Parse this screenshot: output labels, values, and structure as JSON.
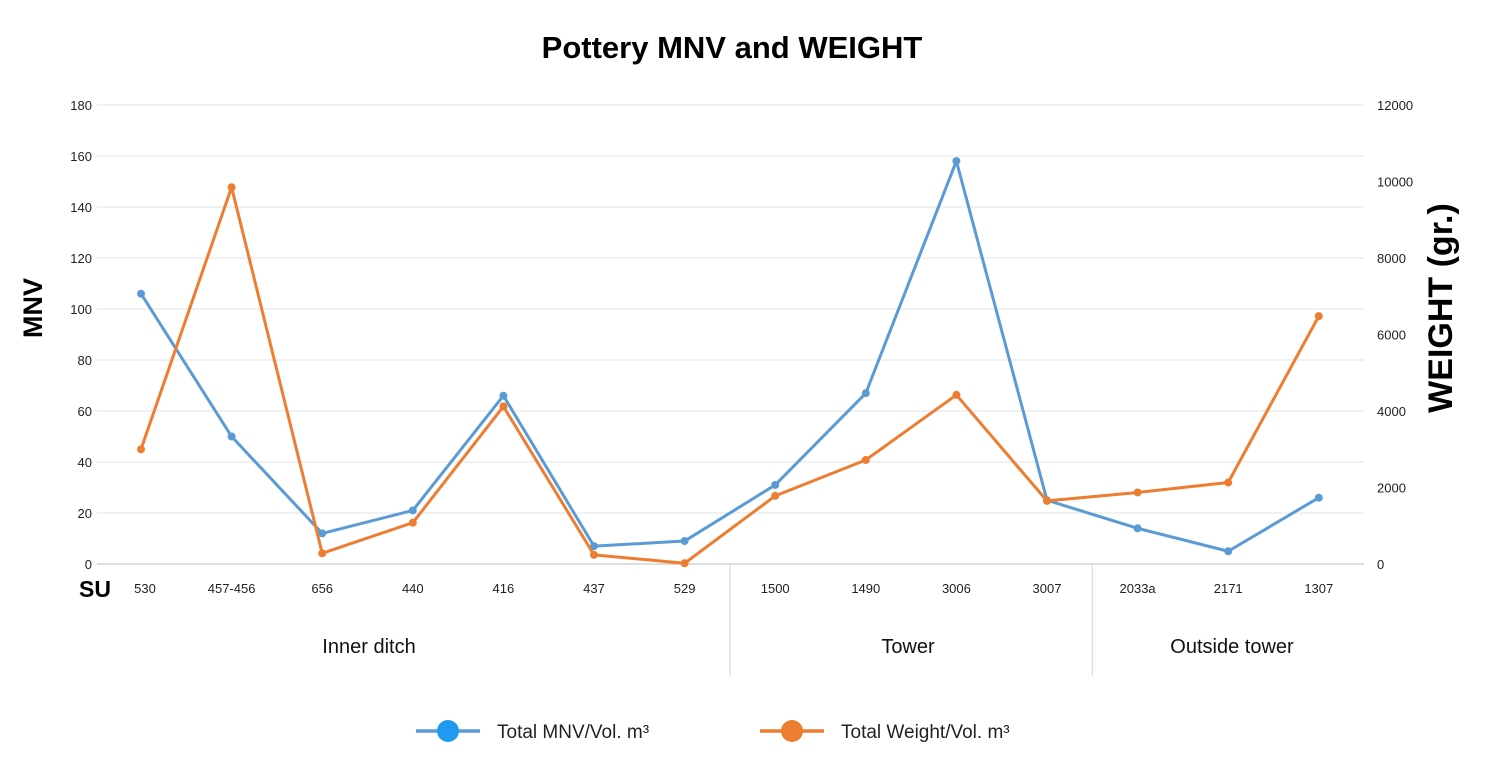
{
  "chart_data": {
    "type": "line",
    "title": "Pottery MNV and WEIGHT",
    "category_axis_label": "SU",
    "categories": [
      "530",
      "457-456",
      "656",
      "440",
      "416",
      "437",
      "529",
      "1500",
      "1490",
      "3006",
      "3007",
      "2033a",
      "2171",
      "1307"
    ],
    "groups": [
      {
        "label": "Inner ditch",
        "start": 0,
        "end": 6
      },
      {
        "label": "Tower",
        "start": 7,
        "end": 10
      },
      {
        "label": "Outside tower",
        "start": 11,
        "end": 13
      }
    ],
    "y_left": {
      "label": "MNV",
      "min": 0,
      "max": 180,
      "ticks": [
        0,
        20,
        40,
        60,
        80,
        100,
        120,
        140,
        160,
        180
      ]
    },
    "y_right": {
      "label": "WEIGHT (gr.)",
      "min": 0,
      "max": 12000,
      "ticks": [
        0,
        2000,
        4000,
        6000,
        8000,
        10000,
        12000
      ]
    },
    "grid": true,
    "legend_position": "bottom",
    "series": [
      {
        "name": "Total MNV/Vol. m³",
        "axis": "left",
        "color": "#5B9BD5",
        "values": [
          106,
          50,
          12,
          21,
          66,
          7,
          9,
          31,
          67,
          158,
          25,
          14,
          5,
          26
        ]
      },
      {
        "name": "Total Weight/Vol. m³",
        "axis": "right",
        "color": "#ED7D31",
        "values": [
          3000,
          9850,
          280,
          1080,
          4120,
          240,
          20,
          1780,
          2720,
          4420,
          1650,
          1870,
          2130,
          6480
        ]
      }
    ]
  }
}
